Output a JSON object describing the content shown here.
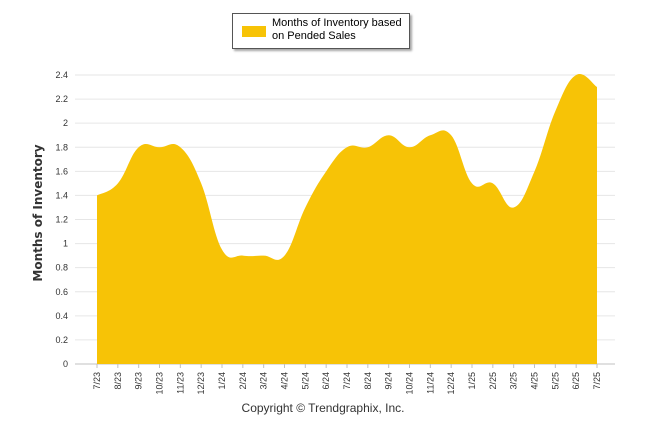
{
  "chart_data": {
    "type": "area",
    "ylabel": "Months of Inventory",
    "xlabel": "",
    "ylim": [
      0,
      2.4
    ],
    "yticks": [
      "0",
      "0.2",
      "0.4",
      "0.6",
      "0.8",
      "1",
      "1.2",
      "1.4",
      "1.6",
      "1.8",
      "2",
      "2.2",
      "2.4"
    ],
    "ytick_values": [
      0,
      0.2,
      0.4,
      0.6,
      0.8,
      1,
      1.2,
      1.4,
      1.6,
      1.8,
      2,
      2.2,
      2.4
    ],
    "categories": [
      "7/23",
      "8/23",
      "9/23",
      "10/23",
      "11/23",
      "12/23",
      "1/24",
      "2/24",
      "3/24",
      "4/24",
      "5/24",
      "6/24",
      "7/24",
      "8/24",
      "9/24",
      "10/24",
      "11/24",
      "12/24",
      "1/25",
      "2/25",
      "3/25",
      "4/25",
      "5/25",
      "6/25",
      "7/25"
    ],
    "series": [
      {
        "name": "Months of Inventory based on Pended Sales",
        "color": "#f7c306",
        "values": [
          1.4,
          1.5,
          1.8,
          1.8,
          1.8,
          1.5,
          0.95,
          0.9,
          0.9,
          0.9,
          1.3,
          1.6,
          1.8,
          1.8,
          1.9,
          1.8,
          1.9,
          1.9,
          1.5,
          1.5,
          1.3,
          1.6,
          2.1,
          2.4,
          2.3
        ]
      }
    ],
    "grid": true,
    "legend": "top-center"
  },
  "legend": {
    "label": "Months of Inventory based on Pended Sales",
    "swatch_color": "#f7c306"
  },
  "footer": {
    "copyright": "Copyright © Trendgraphix, Inc."
  },
  "colors": {
    "area": "#f7c306",
    "grid": "#e6e6e6",
    "axis_text": "#333333"
  }
}
